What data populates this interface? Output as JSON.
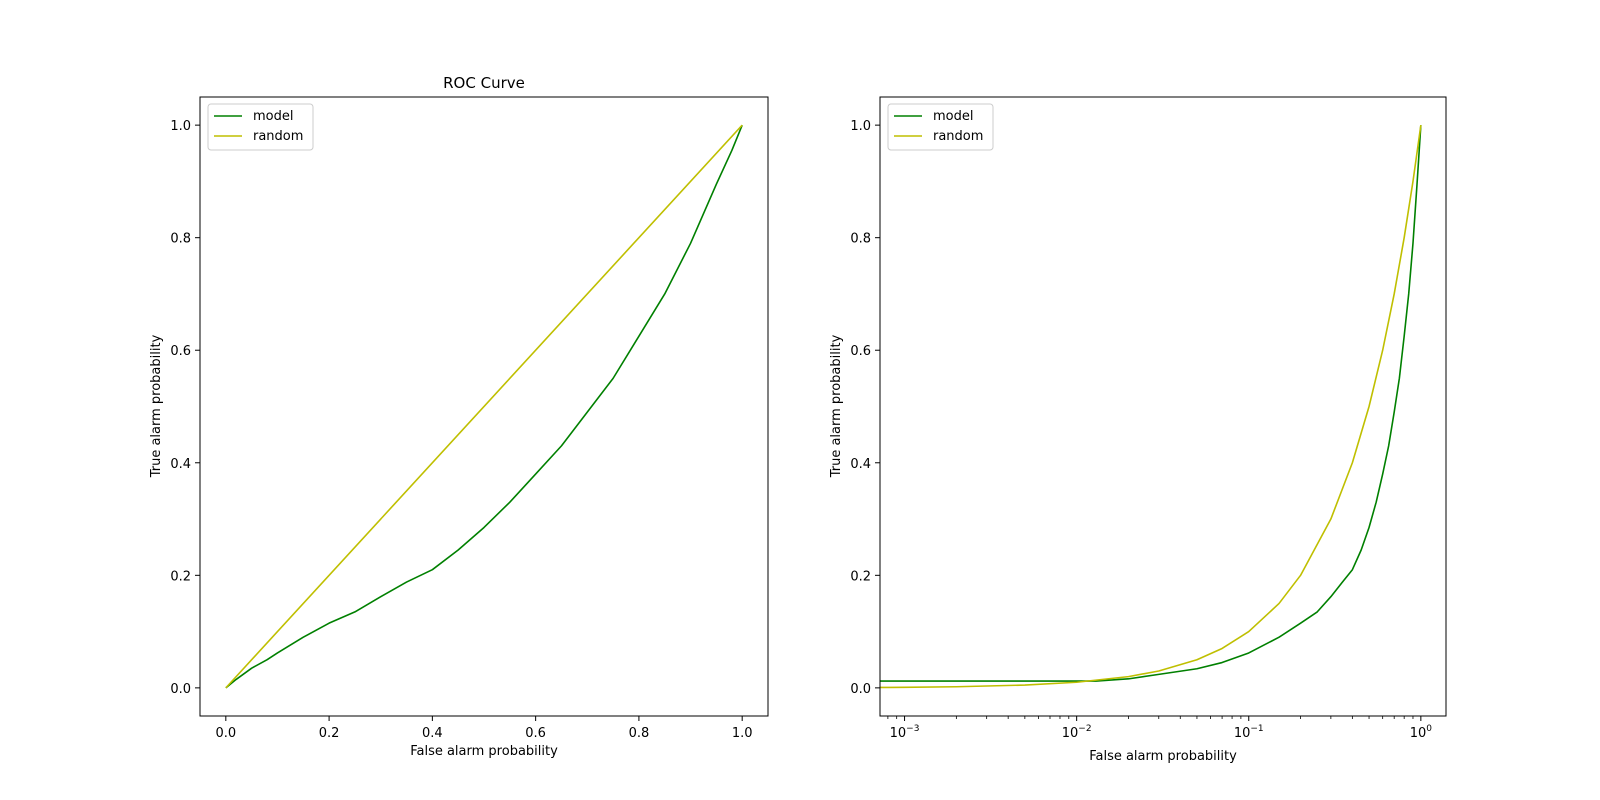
{
  "colors": {
    "model": "#008000",
    "random": "#bfbf00"
  },
  "chart_data": [
    {
      "type": "line",
      "title": "ROC Curve",
      "xlabel": "False alarm probability",
      "ylabel": "True alarm probability",
      "xscale": "linear",
      "xlim": [
        -0.05,
        1.05
      ],
      "ylim": [
        -0.05,
        1.05
      ],
      "xticks": [
        0.0,
        0.2,
        0.4,
        0.6,
        0.8,
        1.0
      ],
      "xtick_labels": [
        "0.0",
        "0.2",
        "0.4",
        "0.6",
        "0.8",
        "1.0"
      ],
      "yticks": [
        0.0,
        0.2,
        0.4,
        0.6,
        0.8,
        1.0
      ],
      "ytick_labels": [
        "0.0",
        "0.2",
        "0.4",
        "0.6",
        "0.8",
        "1.0"
      ],
      "legend": "top-left",
      "grid": false,
      "series": [
        {
          "name": "model",
          "color": "#008000",
          "x": [
            0.0,
            0.02,
            0.05,
            0.08,
            0.1,
            0.15,
            0.2,
            0.25,
            0.3,
            0.35,
            0.4,
            0.45,
            0.5,
            0.55,
            0.6,
            0.65,
            0.7,
            0.75,
            0.8,
            0.85,
            0.9,
            0.95,
            0.98,
            1.0
          ],
          "y": [
            0.0,
            0.015,
            0.035,
            0.05,
            0.062,
            0.09,
            0.115,
            0.135,
            0.162,
            0.188,
            0.21,
            0.245,
            0.285,
            0.33,
            0.38,
            0.43,
            0.49,
            0.55,
            0.625,
            0.7,
            0.79,
            0.895,
            0.955,
            1.0
          ]
        },
        {
          "name": "random",
          "color": "#bfbf00",
          "x": [
            0.0,
            1.0
          ],
          "y": [
            0.0,
            1.0
          ]
        }
      ]
    },
    {
      "type": "line",
      "title": "",
      "xlabel": "False alarm probability",
      "ylabel": "True alarm probability",
      "xscale": "log",
      "xlim": [
        0.00072,
        1.4
      ],
      "ylim": [
        -0.05,
        1.05
      ],
      "xticks": [
        0.001,
        0.01,
        0.1,
        1.0
      ],
      "xtick_labels": [
        "10",
        "10",
        "10",
        "10"
      ],
      "xtick_exponents": [
        "−3",
        "−2",
        "−1",
        "0"
      ],
      "yticks": [
        0.0,
        0.2,
        0.4,
        0.6,
        0.8,
        1.0
      ],
      "ytick_labels": [
        "0.0",
        "0.2",
        "0.4",
        "0.6",
        "0.8",
        "1.0"
      ],
      "legend": "top-left",
      "grid": false,
      "series": [
        {
          "name": "model",
          "color": "#008000",
          "x": [
            0.00072,
            0.005,
            0.01,
            0.013,
            0.02,
            0.03,
            0.05,
            0.07,
            0.1,
            0.15,
            0.2,
            0.25,
            0.3,
            0.35,
            0.4,
            0.45,
            0.5,
            0.55,
            0.6,
            0.65,
            0.7,
            0.75,
            0.8,
            0.85,
            0.9,
            0.95,
            1.0
          ],
          "y": [
            0.012,
            0.012,
            0.012,
            0.012,
            0.016,
            0.024,
            0.034,
            0.045,
            0.062,
            0.09,
            0.115,
            0.135,
            0.162,
            0.188,
            0.21,
            0.245,
            0.285,
            0.33,
            0.38,
            0.43,
            0.49,
            0.55,
            0.625,
            0.7,
            0.79,
            0.895,
            1.0
          ]
        },
        {
          "name": "random",
          "color": "#bfbf00",
          "x": [
            0.00072,
            0.001,
            0.002,
            0.005,
            0.01,
            0.02,
            0.03,
            0.05,
            0.07,
            0.1,
            0.15,
            0.2,
            0.3,
            0.4,
            0.5,
            0.6,
            0.7,
            0.8,
            0.9,
            1.0
          ],
          "y": [
            0.00072,
            0.001,
            0.002,
            0.005,
            0.01,
            0.02,
            0.03,
            0.05,
            0.07,
            0.1,
            0.15,
            0.2,
            0.3,
            0.4,
            0.5,
            0.6,
            0.7,
            0.8,
            0.9,
            1.0
          ]
        }
      ]
    }
  ]
}
